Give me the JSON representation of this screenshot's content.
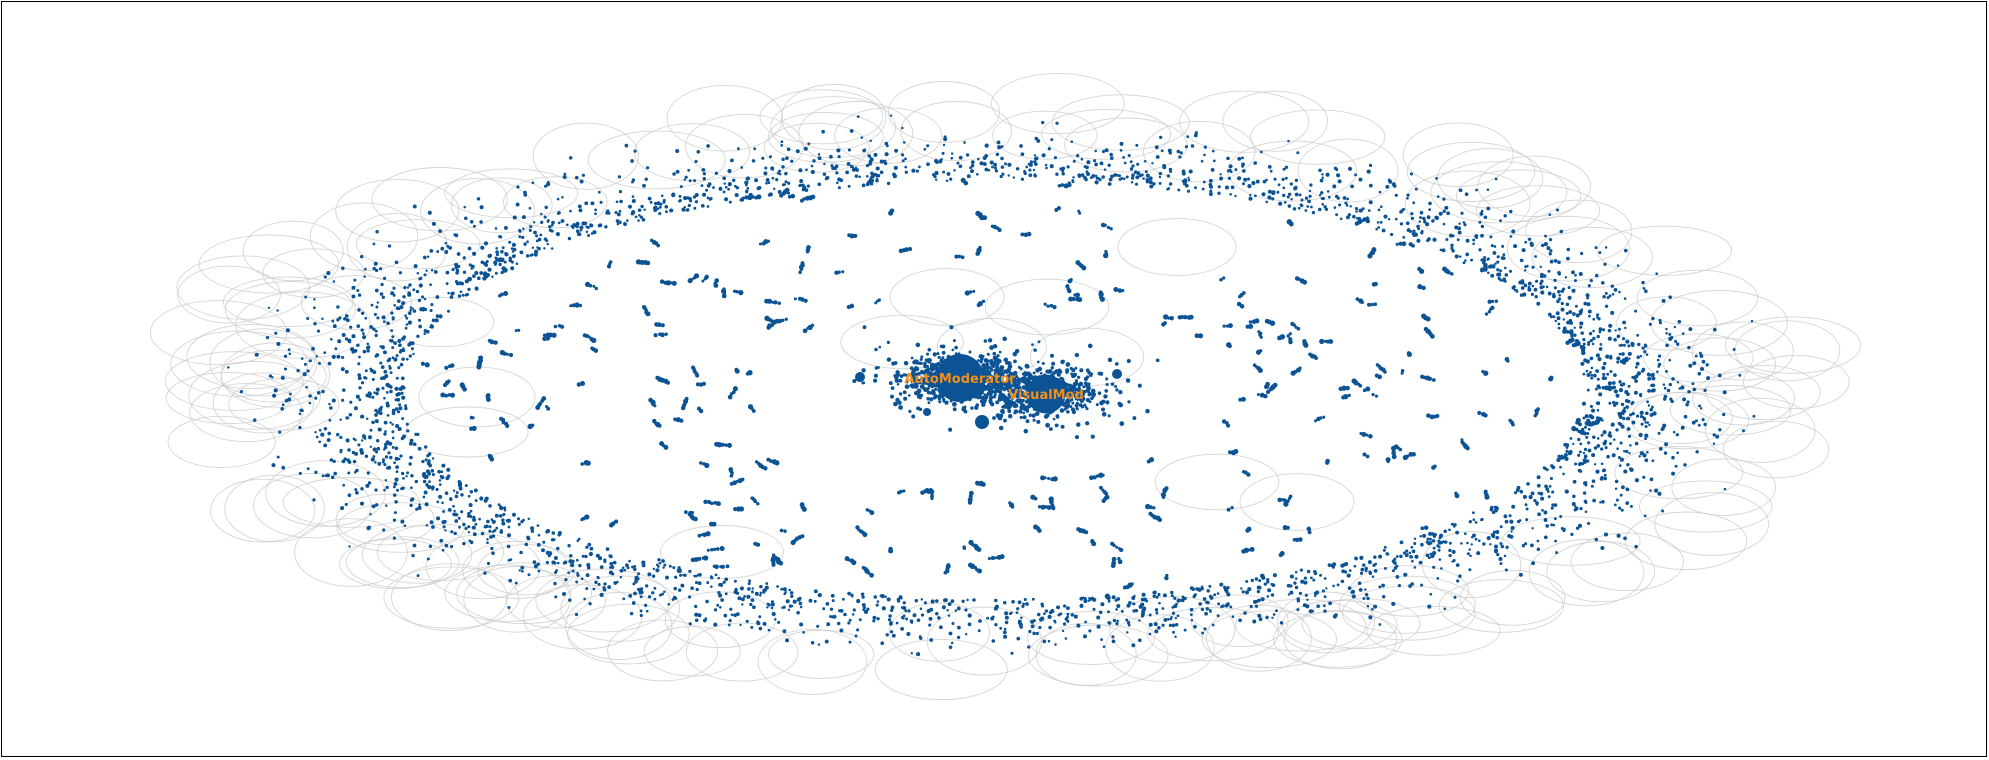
{
  "graph": {
    "type": "network",
    "layout": "force-directed",
    "colors": {
      "node": "#0b5394",
      "edge": "#c8c8c8",
      "label": "#f28e1c",
      "frame": "#000000"
    },
    "hubs": [
      {
        "id": "hub-automoderator",
        "label": "AutoModerator",
        "relative_size": 1.0
      },
      {
        "id": "hub-visualmod",
        "label": "VisualMod",
        "relative_size": 0.8
      }
    ],
    "structure": {
      "inner_cluster": "dense core of nodes around the two hub nodes",
      "outer_ring": "many small nodes arranged in a wide elliptical ring",
      "peripheral_loops": "light grey self-loop edges drawn around the outer ring",
      "scattered_pairs": "small isolated node pairs and chains between the core and the ring"
    }
  }
}
